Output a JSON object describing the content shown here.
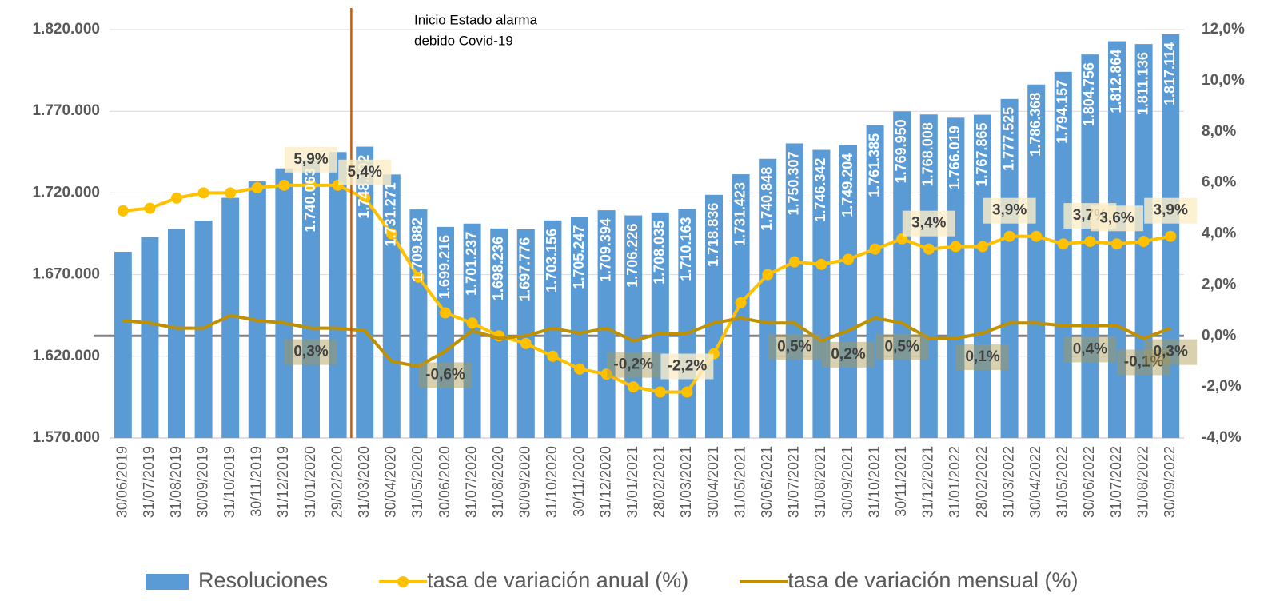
{
  "chart_data": {
    "type": "bar-line",
    "annotation": [
      "Inicio Estado alarma",
      "debido Covid-19"
    ],
    "categories": [
      "30/06/2019",
      "31/07/2019",
      "31/08/2019",
      "30/09/2019",
      "31/10/2019",
      "30/11/2019",
      "31/12/2019",
      "31/01/2020",
      "29/02/2020",
      "31/03/2020",
      "30/04/2020",
      "31/05/2020",
      "30/06/2020",
      "31/07/2020",
      "31/08/2020",
      "30/09/2020",
      "31/10/2020",
      "30/11/2020",
      "31/12/2020",
      "31/01/2021",
      "28/02/2021",
      "31/03/2021",
      "30/04/2021",
      "31/05/2021",
      "30/06/2021",
      "31/07/2021",
      "31/08/2021",
      "30/09/2021",
      "31/10/2021",
      "30/11/2021",
      "31/12/2021",
      "31/01/2022",
      "28/02/2022",
      "31/03/2022",
      "30/04/2022",
      "31/05/2022",
      "30/06/2022",
      "31/07/2022",
      "31/08/2022",
      "30/09/2022"
    ],
    "series": [
      {
        "name": "Resoluciones",
        "kind": "bar",
        "color": "#5b9bd5",
        "values": [
          1684000,
          1693000,
          1698000,
          1703000,
          1717000,
          1727000,
          1735000,
          1740063,
          1745000,
          1748292,
          1731271,
          1709882,
          1699216,
          1701237,
          1698236,
          1697776,
          1703156,
          1705247,
          1709394,
          1706226,
          1708035,
          1710163,
          1718836,
          1731423,
          1740848,
          1750307,
          1746342,
          1749204,
          1761385,
          1769950,
          1768008,
          1766019,
          1767865,
          1777525,
          1786368,
          1794157,
          1804756,
          1812864,
          1811136,
          1817114
        ],
        "value_labels": [
          null,
          null,
          null,
          null,
          null,
          null,
          null,
          "1.740.063",
          null,
          "1.748.292",
          "1.731.271",
          "1.709.882",
          "1.699.216",
          "1.701.237",
          "1.698.236",
          "1.697.776",
          "1.703.156",
          "1.705.247",
          "1.709.394",
          "1.706.226",
          "1.708.035",
          "1.710.163",
          "1.718.836",
          "1.731.423",
          "1.740.848",
          "1.750.307",
          "1.746.342",
          "1.749.204",
          "1.761.385",
          "1.769.950",
          "1.768.008",
          "1.766.019",
          "1.767.865",
          "1.777.525",
          "1.786.368",
          "1.794.157",
          "1.804.756",
          "1.812.864",
          "1.811.136",
          "1.817.114"
        ]
      },
      {
        "name": "tasa de variación anual (%)",
        "kind": "line-marker",
        "axis": "y2",
        "color": "#ffc000",
        "values": [
          4.9,
          5.0,
          5.4,
          5.6,
          5.6,
          5.8,
          5.9,
          5.9,
          5.9,
          5.4,
          4.0,
          2.3,
          0.9,
          0.5,
          0.0,
          -0.3,
          -0.8,
          -1.3,
          -1.5,
          -2.0,
          -2.2,
          -2.2,
          -0.7,
          1.3,
          2.4,
          2.9,
          2.8,
          3.0,
          3.4,
          3.8,
          3.4,
          3.5,
          3.5,
          3.9,
          3.9,
          3.6,
          3.7,
          3.6,
          3.7,
          3.9
        ],
        "value_labels": [
          null,
          null,
          null,
          null,
          null,
          null,
          null,
          "5,9%",
          null,
          "5,4%",
          null,
          null,
          null,
          null,
          null,
          null,
          null,
          null,
          null,
          null,
          null,
          "-2,2%",
          null,
          null,
          null,
          null,
          null,
          null,
          null,
          null,
          "3,4%",
          null,
          null,
          "3,9%",
          null,
          null,
          "3,7%",
          "3,6%",
          null,
          "3,9%"
        ]
      },
      {
        "name": "tasa de variación mensual (%)",
        "kind": "line",
        "axis": "y2",
        "color": "#bf9000",
        "values": [
          0.6,
          0.5,
          0.3,
          0.3,
          0.8,
          0.6,
          0.5,
          0.3,
          0.3,
          0.2,
          -1.0,
          -1.2,
          -0.6,
          0.2,
          -0.1,
          0.0,
          0.3,
          0.1,
          0.3,
          -0.2,
          0.1,
          0.1,
          0.5,
          0.7,
          0.5,
          0.5,
          -0.2,
          0.2,
          0.7,
          0.5,
          -0.1,
          -0.1,
          0.1,
          0.5,
          0.5,
          0.4,
          0.4,
          0.4,
          -0.1,
          0.3
        ],
        "value_labels": [
          null,
          null,
          null,
          null,
          null,
          null,
          null,
          "0,3%",
          null,
          null,
          null,
          null,
          "-0,6%",
          null,
          null,
          null,
          null,
          null,
          null,
          "-0,2%",
          null,
          null,
          null,
          null,
          null,
          "0,5%",
          null,
          "0,2%",
          null,
          "0,5%",
          null,
          null,
          "0,1%",
          null,
          null,
          null,
          "0,4%",
          null,
          "-0,1%",
          "0,3%"
        ]
      }
    ],
    "ylim": [
      1570000,
      1820000
    ],
    "yticks": [
      {
        "value": 1570000,
        "label": "1.570.000"
      },
      {
        "value": 1620000,
        "label": "1.620.000"
      },
      {
        "value": 1670000,
        "label": "1.670.000"
      },
      {
        "value": 1720000,
        "label": "1.720.000"
      },
      {
        "value": 1770000,
        "label": "1.770.000"
      },
      {
        "value": 1820000,
        "label": "1.820.000"
      }
    ],
    "y2lim": [
      -4,
      12
    ],
    "y2ticks": [
      {
        "value": -4,
        "label": "-4,0%"
      },
      {
        "value": -2,
        "label": "-2,0%"
      },
      {
        "value": 0,
        "label": "0,0%"
      },
      {
        "value": 2,
        "label": "2,0%"
      },
      {
        "value": 4,
        "label": "4,0%"
      },
      {
        "value": 6,
        "label": "6,0%"
      },
      {
        "value": 8,
        "label": "8,0%"
      },
      {
        "value": 10,
        "label": "10,0%"
      },
      {
        "value": 12,
        "label": "12,0%"
      }
    ],
    "grid": true
  }
}
